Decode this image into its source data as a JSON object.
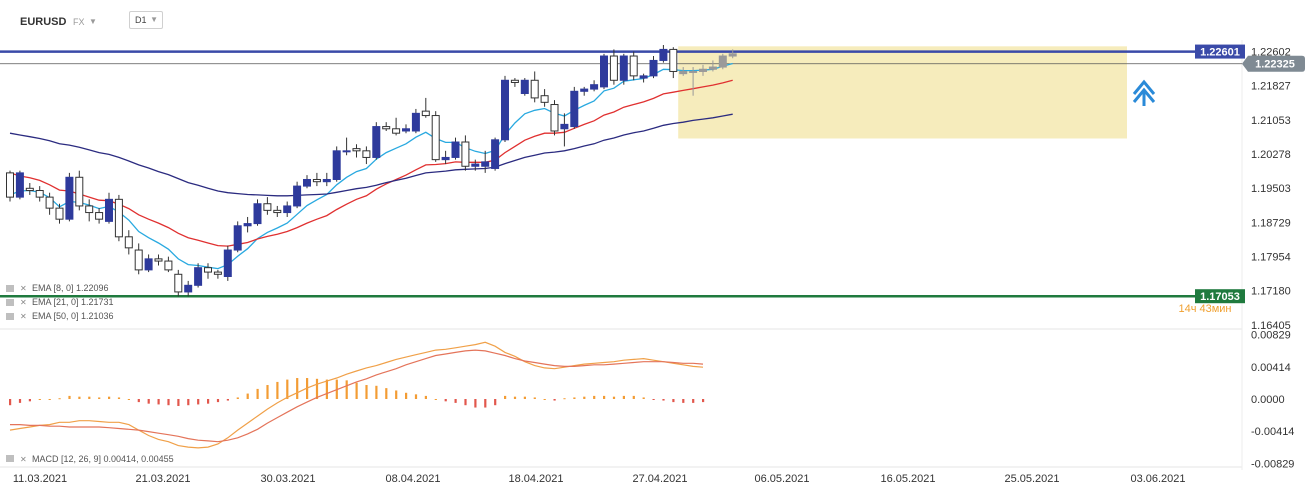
{
  "header": {
    "symbol": "EURUSD",
    "market": "FX",
    "timeframe": "D1"
  },
  "colors": {
    "ema8": "#29a9e0",
    "ema21": "#e03030",
    "ema50": "#2b2b80",
    "bull_candle": "#2e3a9c",
    "resistance_line": "#3a4aa8",
    "support_line": "#1f7a3e",
    "macd_hist_positive": "#f39c34",
    "macd_hist_negative": "#e2574c",
    "macd_line": "#f0a048",
    "signal_line": "#e4745a",
    "forecast_box": "#f5e9b0",
    "forecast_arrow": "#2a8ad8"
  },
  "indicators": [
    {
      "label": "EMA [8, 0] 1.22096"
    },
    {
      "label": "EMA [21, 0] 1.21731"
    },
    {
      "label": "EMA [50, 0] 1.21036"
    }
  ],
  "macd_label": "MACD [12, 26, 9] 0.00414, 0.00455",
  "levels": {
    "resistance": "1.22601",
    "current": "1.22325",
    "support": "1.17053",
    "countdown": "14ч 43мин"
  },
  "chart_data": {
    "type": "candlestick",
    "price_axis": {
      "ylim": [
        1.164,
        1.2275
      ],
      "ticks": [
        "1.22602",
        "1.21827",
        "1.21053",
        "1.20278",
        "1.19503",
        "1.18729",
        "1.17954",
        "1.17180",
        "1.16405"
      ]
    },
    "macd_axis": {
      "ylim": [
        -0.0085,
        0.0085
      ],
      "ticks": [
        "0.00829",
        "0.00414",
        "0.0000",
        "-0.00414",
        "-0.00829"
      ]
    },
    "x_labels": [
      "11.03.2021",
      "21.03.2021",
      "30.03.2021",
      "08.04.2021",
      "18.04.2021",
      "27.04.2021",
      "06.05.2021",
      "16.05.2021",
      "25.05.2021",
      "03.06.2021"
    ],
    "candles": [
      [
        1.1985,
        1.193,
        1.199,
        1.192
      ],
      [
        1.193,
        1.1985,
        1.199,
        1.1925
      ],
      [
        1.195,
        1.1945,
        1.1962,
        1.1935
      ],
      [
        1.1945,
        1.193,
        1.1955,
        1.192
      ],
      [
        1.193,
        1.1905,
        1.194,
        1.189
      ],
      [
        1.1905,
        1.188,
        1.1915,
        1.187
      ],
      [
        1.188,
        1.1975,
        1.1985,
        1.1875
      ],
      [
        1.1975,
        1.191,
        1.199,
        1.19
      ],
      [
        1.191,
        1.1895,
        1.1925,
        1.1875
      ],
      [
        1.1895,
        1.188,
        1.1905,
        1.187
      ],
      [
        1.1875,
        1.1925,
        1.194,
        1.187
      ],
      [
        1.1925,
        1.184,
        1.1935,
        1.183
      ],
      [
        1.184,
        1.1815,
        1.1855,
        1.18
      ],
      [
        1.181,
        1.1765,
        1.1825,
        1.1755
      ],
      [
        1.1765,
        1.179,
        1.18,
        1.176
      ],
      [
        1.179,
        1.1785,
        1.18,
        1.1775
      ],
      [
        1.1785,
        1.1765,
        1.1795,
        1.176
      ],
      [
        1.1755,
        1.1715,
        1.1765,
        1.1705
      ],
      [
        1.1715,
        1.173,
        1.174,
        1.1705
      ],
      [
        1.173,
        1.177,
        1.178,
        1.1725
      ],
      [
        1.177,
        1.176,
        1.178,
        1.1745
      ],
      [
        1.176,
        1.1755,
        1.1765,
        1.1745
      ],
      [
        1.175,
        1.181,
        1.182,
        1.174
      ],
      [
        1.181,
        1.1865,
        1.1875,
        1.1805
      ],
      [
        1.1865,
        1.187,
        1.1885,
        1.185
      ],
      [
        1.187,
        1.1915,
        1.1925,
        1.1865
      ],
      [
        1.1915,
        1.19,
        1.193,
        1.189
      ],
      [
        1.19,
        1.1895,
        1.191,
        1.1885
      ],
      [
        1.1895,
        1.191,
        1.192,
        1.1885
      ],
      [
        1.191,
        1.1955,
        1.1965,
        1.1905
      ],
      [
        1.1955,
        1.197,
        1.198,
        1.195
      ],
      [
        1.197,
        1.1965,
        1.1985,
        1.1955
      ],
      [
        1.1965,
        1.197,
        1.1985,
        1.1955
      ],
      [
        1.197,
        1.2035,
        1.2045,
        1.1965
      ],
      [
        1.2035,
        1.2035,
        1.2065,
        1.2025
      ],
      [
        1.204,
        1.2035,
        1.205,
        1.202
      ],
      [
        1.2035,
        1.202,
        1.2045,
        1.2005
      ],
      [
        1.202,
        1.209,
        1.21,
        1.2015
      ],
      [
        1.209,
        1.2085,
        1.21,
        1.208
      ],
      [
        1.2085,
        1.2075,
        1.211,
        1.207
      ],
      [
        1.208,
        1.2085,
        1.2095,
        1.2075
      ],
      [
        1.208,
        1.212,
        1.213,
        1.2075
      ],
      [
        1.2125,
        1.2115,
        1.2155,
        1.211
      ],
      [
        1.2115,
        1.2015,
        1.2125,
        1.201
      ],
      [
        1.2015,
        1.202,
        1.2035,
        1.2005
      ],
      [
        1.202,
        1.2055,
        1.2065,
        1.2015
      ],
      [
        1.2055,
        1.2,
        1.207,
        1.199
      ],
      [
        1.2,
        1.2005,
        1.2015,
        1.199
      ],
      [
        1.2,
        1.201,
        1.2035,
        1.1985
      ],
      [
        1.1995,
        1.206,
        1.2065,
        1.199
      ],
      [
        1.206,
        1.2195,
        1.2205,
        1.2055
      ],
      [
        1.2195,
        1.219,
        1.22,
        1.218
      ],
      [
        1.2165,
        1.2195,
        1.22,
        1.216
      ],
      [
        1.2195,
        1.2155,
        1.2215,
        1.2145
      ],
      [
        1.216,
        1.2145,
        1.2175,
        1.2135
      ],
      [
        1.214,
        1.208,
        1.215,
        1.207
      ],
      [
        1.2085,
        1.2095,
        1.212,
        1.2045
      ],
      [
        1.209,
        1.217,
        1.218,
        1.2085
      ],
      [
        1.217,
        1.2175,
        1.218,
        1.216
      ],
      [
        1.2175,
        1.2185,
        1.2195,
        1.217
      ],
      [
        1.218,
        1.225,
        1.2255,
        1.2175
      ],
      [
        1.225,
        1.2195,
        1.2265,
        1.2185
      ],
      [
        1.2195,
        1.225,
        1.2255,
        1.2185
      ],
      [
        1.225,
        1.2205,
        1.226,
        1.2195
      ],
      [
        1.22,
        1.2205,
        1.221,
        1.219
      ],
      [
        1.2205,
        1.224,
        1.225,
        1.22
      ],
      [
        1.224,
        1.2265,
        1.2275,
        1.2235
      ],
      [
        1.2265,
        1.2215,
        1.227,
        1.22
      ]
    ],
    "forecast_candles": [
      [
        1.221,
        1.2215,
        1.2225,
        1.2205
      ],
      [
        1.2215,
        1.2215,
        1.2225,
        1.216
      ],
      [
        1.2215,
        1.222,
        1.223,
        1.2205
      ],
      [
        1.222,
        1.2225,
        1.224,
        1.2215
      ],
      [
        1.2225,
        1.225,
        1.2255,
        1.222
      ],
      [
        1.225,
        1.2255,
        1.2265,
        1.2245
      ]
    ],
    "ema": [
      {
        "period": 8,
        "values": [
          1.1935,
          1.1944,
          1.1945,
          1.1941,
          1.1929,
          1.1908,
          1.192,
          1.1918,
          1.1912,
          1.1904,
          1.1909,
          1.1896,
          1.1878,
          1.1852,
          1.1838,
          1.1826,
          1.1812,
          1.179,
          1.1777,
          1.1775,
          1.1771,
          1.1768,
          1.1777,
          1.1796,
          1.1813,
          1.1836,
          1.185,
          1.186,
          1.1871,
          1.1891,
          1.1911,
          1.1924,
          1.1936,
          1.1958,
          1.1975,
          1.1988,
          1.1995,
          1.2016,
          1.2031,
          1.2041,
          1.2051,
          1.2066,
          1.2077,
          1.2063,
          1.2054,
          1.2054,
          1.2042,
          1.2034,
          1.2029,
          1.2036,
          1.2072,
          1.2098,
          1.2119,
          1.2127,
          1.2131,
          1.212,
          1.2114,
          1.2127,
          1.2138,
          1.2148,
          1.2171,
          1.2177,
          1.2193,
          1.2196,
          1.2199,
          1.2208,
          1.222,
          1.2219,
          1.2217,
          1.2217,
          1.2218,
          1.222,
          1.2227,
          1.2233
        ]
      },
      {
        "period": 21,
        "values": [
          1.1985,
          1.1978,
          1.1974,
          1.1968,
          1.1958,
          1.1946,
          1.1944,
          1.1937,
          1.193,
          1.1923,
          1.1922,
          1.1914,
          1.1904,
          1.189,
          1.188,
          1.1871,
          1.1861,
          1.1848,
          1.1838,
          1.1832,
          1.1826,
          1.182,
          1.1819,
          1.1823,
          1.1827,
          1.1835,
          1.1841,
          1.1846,
          1.1852,
          1.1861,
          1.1871,
          1.188,
          1.1888,
          1.1902,
          1.1914,
          1.1925,
          1.1933,
          1.1948,
          1.196,
          1.197,
          1.198,
          1.1992,
          1.2003,
          1.2004,
          1.2006,
          1.201,
          1.2009,
          1.2009,
          1.2009,
          1.2014,
          1.2031,
          1.2045,
          1.2059,
          1.2068,
          1.2075,
          1.2075,
          1.2077,
          1.2086,
          1.2095,
          1.2103,
          1.2116,
          1.2123,
          1.2134,
          1.214,
          1.2146,
          1.2154,
          1.2164,
          1.2168,
          1.2172,
          1.2176,
          1.218,
          1.2184,
          1.2189,
          1.2195
        ]
      },
      {
        "period": 50,
        "values": [
          1.2075,
          1.2071,
          1.2067,
          1.2063,
          1.2058,
          1.2051,
          1.2048,
          1.2043,
          1.2037,
          1.2031,
          1.2027,
          1.202,
          1.2012,
          1.2003,
          1.1996,
          1.1988,
          1.1981,
          1.1972,
          1.1963,
          1.1957,
          1.195,
          1.1944,
          1.194,
          1.1938,
          1.1936,
          1.1935,
          1.1934,
          1.1933,
          1.1933,
          1.1934,
          1.1935,
          1.1936,
          1.1937,
          1.1941,
          1.1945,
          1.1949,
          1.1952,
          1.1957,
          1.1963,
          1.1968,
          1.1973,
          1.1979,
          1.1985,
          1.1987,
          1.1989,
          1.1992,
          1.1993,
          1.1994,
          1.1995,
          1.1998,
          1.2006,
          1.2013,
          1.202,
          1.2025,
          1.203,
          1.2032,
          1.2035,
          1.204,
          1.2046,
          1.2051,
          1.2059,
          1.2064,
          1.2071,
          1.2076,
          1.208,
          1.2086,
          1.2093,
          1.2097,
          1.21,
          1.2104,
          1.2107,
          1.211,
          1.2114,
          1.2118
        ]
      }
    ],
    "macd": {
      "hist": [
        -0.0008,
        -0.0005,
        -0.0003,
        0.0,
        0.0,
        0.0001,
        0.0004,
        0.0003,
        0.0003,
        0.0002,
        0.0003,
        0.0002,
        0.0,
        -0.0004,
        -0.0006,
        -0.0007,
        -0.0008,
        -0.0009,
        -0.0008,
        -0.0007,
        -0.0006,
        -0.0004,
        -0.0002,
        0.0002,
        0.0007,
        0.0013,
        0.0018,
        0.0022,
        0.0025,
        0.0027,
        0.0027,
        0.0026,
        0.0025,
        0.0025,
        0.0024,
        0.0021,
        0.0018,
        0.0017,
        0.0014,
        0.0011,
        0.0008,
        0.0006,
        0.0004,
        0.0,
        -0.0003,
        -0.0005,
        -0.0008,
        -0.0011,
        -0.0011,
        -0.0008,
        0.0004,
        0.0003,
        0.0003,
        0.0002,
        0.0,
        -0.0002,
        0.0001,
        0.0002,
        0.0003,
        0.0004,
        0.0004,
        0.0003,
        0.0004,
        0.0004,
        0.0002,
        -0.0001,
        -0.0002,
        -0.0004,
        -0.0005,
        -0.0005,
        -0.0004
      ],
      "macd": [
        -0.004,
        -0.0038,
        -0.0036,
        -0.0034,
        -0.0033,
        -0.003,
        -0.003,
        -0.0028,
        -0.0028,
        -0.0029,
        -0.003,
        -0.003,
        -0.0033,
        -0.004,
        -0.0047,
        -0.0052,
        -0.0055,
        -0.006,
        -0.0062,
        -0.0063,
        -0.0062,
        -0.0058,
        -0.005,
        -0.004,
        -0.0031,
        -0.0022,
        -0.0013,
        -0.0005,
        0.0002,
        0.0008,
        0.0014,
        0.0019,
        0.0023,
        0.0027,
        0.0032,
        0.0036,
        0.004,
        0.0043,
        0.0047,
        0.0051,
        0.0054,
        0.0057,
        0.006,
        0.0063,
        0.0064,
        0.0066,
        0.0068,
        0.007,
        0.0073,
        0.0068,
        0.006,
        0.0055,
        0.0048,
        0.0043,
        0.004,
        0.0039,
        0.0041,
        0.0043,
        0.0045,
        0.0046,
        0.0047,
        0.0048,
        0.005,
        0.0051,
        0.0052,
        0.005,
        0.0048,
        0.0046,
        0.0044,
        0.0042,
        0.0041
      ],
      "signal": [
        -0.0033,
        -0.0033,
        -0.0034,
        -0.0034,
        -0.0035,
        -0.0035,
        -0.0036,
        -0.0036,
        -0.0036,
        -0.0036,
        -0.0037,
        -0.0038,
        -0.0039,
        -0.004,
        -0.0042,
        -0.0044,
        -0.0046,
        -0.0048,
        -0.0051,
        -0.0053,
        -0.0054,
        -0.0055,
        -0.0053,
        -0.005,
        -0.0045,
        -0.0039,
        -0.0031,
        -0.0024,
        -0.0017,
        -0.001,
        -0.0004,
        0.0002,
        0.0007,
        0.0012,
        0.0017,
        0.0022,
        0.0026,
        0.0031,
        0.0035,
        0.0039,
        0.0044,
        0.0048,
        0.0052,
        0.0056,
        0.0058,
        0.006,
        0.0062,
        0.0063,
        0.0062,
        0.0059,
        0.0056,
        0.0052,
        0.0049,
        0.0047,
        0.0045,
        0.0043,
        0.0042,
        0.0042,
        0.0043,
        0.0044,
        0.0044,
        0.0045,
        0.0046,
        0.0047,
        0.0048,
        0.0048,
        0.0048,
        0.0047,
        0.0046,
        0.0046,
        0.0045
      ]
    }
  }
}
